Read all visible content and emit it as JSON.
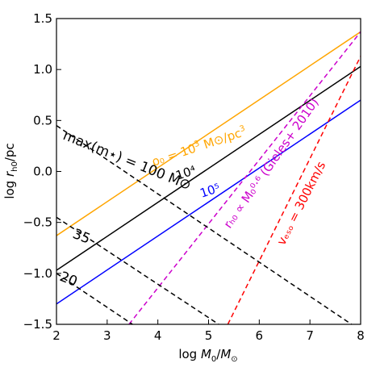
{
  "chart_data": {
    "type": "line",
    "title": "",
    "xlabel": "log M₀/M⊙",
    "ylabel": "log rₕ₀/pc",
    "xlim": [
      2,
      8
    ],
    "ylim": [
      -1.5,
      1.5
    ],
    "xticks": [
      "2",
      "3",
      "4",
      "5",
      "6",
      "7",
      "8"
    ],
    "yticks": [
      "−1.5",
      "−1.0",
      "−0.5",
      "0.0",
      "0.5",
      "1.0",
      "1.5"
    ],
    "grid": false,
    "series": [
      {
        "label": "ρ₀ = 10³ M⊙/pc³",
        "color": "#ffa500",
        "dash": "solid",
        "points": [
          [
            2,
            -0.63
          ],
          [
            8,
            1.37
          ]
        ]
      },
      {
        "label": "10⁴",
        "color": "#000000",
        "dash": "solid",
        "points": [
          [
            2,
            -0.97
          ],
          [
            8,
            1.03
          ]
        ]
      },
      {
        "label": "10⁵",
        "color": "#0000ff",
        "dash": "solid",
        "points": [
          [
            2,
            -1.3
          ],
          [
            8,
            0.7
          ]
        ]
      },
      {
        "label": "rₕ₀ ∝ M₀^0.6 (Gieles+ 2010)",
        "color": "#cc00cc",
        "dash": "dashed",
        "points": [
          [
            3.43,
            -1.5
          ],
          [
            8,
            1.37
          ]
        ]
      },
      {
        "label": "v_esc = 300km/s",
        "color": "#ff0000",
        "dash": "dashed",
        "points": [
          [
            5.38,
            -1.5
          ],
          [
            8,
            1.13
          ]
        ]
      },
      {
        "label": "max(m⋆) = 100 M⊙",
        "color": "#000000",
        "dash": "dashed",
        "points": [
          [
            2,
            0.45
          ],
          [
            7.82,
            -1.5
          ]
        ]
      },
      {
        "label": "35",
        "color": "#000000",
        "dash": "dashed",
        "points": [
          [
            2,
            -0.45
          ],
          [
            5.2,
            -1.5
          ]
        ]
      },
      {
        "label": "20",
        "color": "#000000",
        "dash": "dashed",
        "points": [
          [
            2,
            -1.0
          ],
          [
            3.5,
            -1.5
          ]
        ]
      }
    ],
    "annotations": {
      "rho_prefix": "ρ₀ = 10",
      "rho_exp": "3",
      "rho_mid": " M⊙/pc",
      "rho_exp2": "3",
      "dens_1e4": "10⁴",
      "dens_1e5": "10⁵",
      "gieles": "rₕ₀ ∝ M₀⁰·⁶ (Gieles+ 2010)",
      "vesc": "vₑₛₒ = 300km/s",
      "mmax": "max(m⋆) = 100 M⊙",
      "m35": "35",
      "m20": "20"
    }
  }
}
